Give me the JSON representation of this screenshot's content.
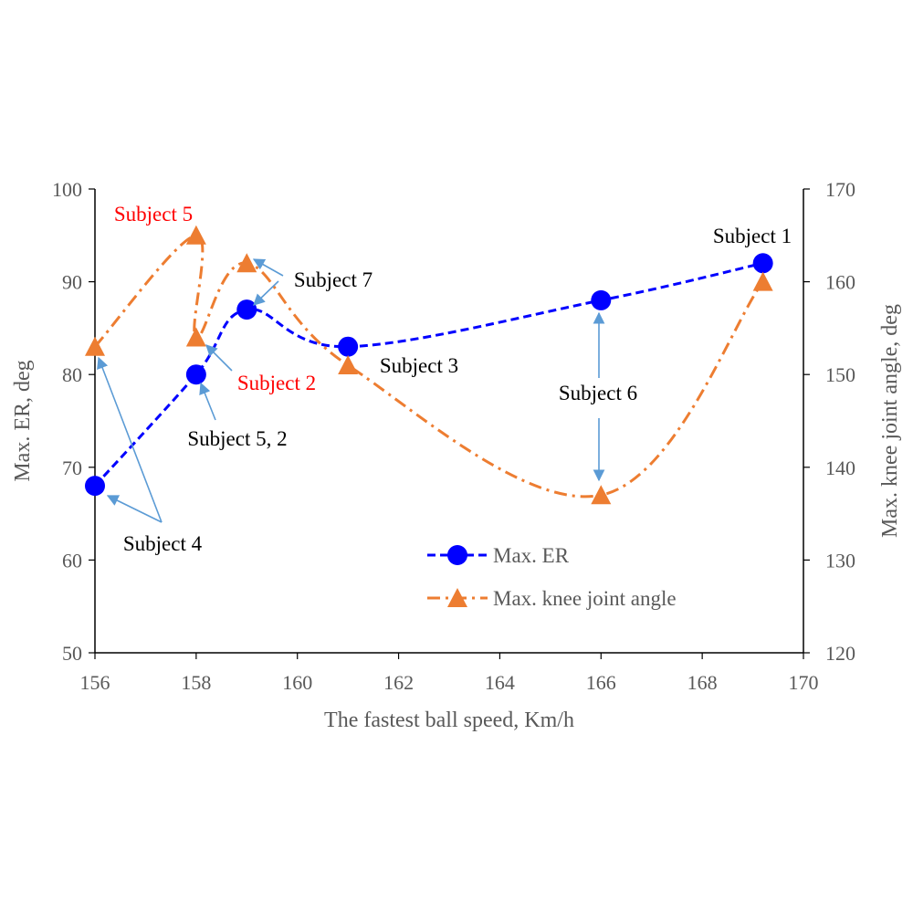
{
  "chart_data": {
    "type": "line",
    "title": "",
    "xlabel": "The fastest ball speed, Km/h",
    "ylabel": "Max.  ER, deg",
    "y2label": "Max. knee joint angle, deg",
    "xlim": [
      156,
      170
    ],
    "ylim": [
      50,
      100
    ],
    "y2lim": [
      120,
      170
    ],
    "x_ticks": [
      "156",
      "158",
      "160",
      "162",
      "164",
      "166",
      "168",
      "170"
    ],
    "y_ticks": [
      "50",
      "60",
      "70",
      "80",
      "90",
      "100"
    ],
    "y2_ticks": [
      "120",
      "130",
      "140",
      "150",
      "160",
      "170"
    ],
    "grid": false,
    "legend_position": "bottom-right",
    "series": [
      {
        "name": "Max. ER",
        "axis": "left",
        "color": "#0000FF",
        "marker": "circle",
        "line_style": "dashed",
        "points": [
          [
            156,
            68
          ],
          [
            158,
            80
          ],
          [
            159,
            87
          ],
          [
            161,
            83
          ],
          [
            166,
            88
          ],
          [
            169.2,
            92
          ]
        ]
      },
      {
        "name": "Max. knee joint angle",
        "axis": "right",
        "color": "#ED7D31",
        "marker": "triangle",
        "line_style": "dash-dot",
        "points": [
          [
            156,
            153
          ],
          [
            158,
            165
          ],
          [
            158,
            154
          ],
          [
            159,
            162
          ],
          [
            161,
            151
          ],
          [
            166,
            137
          ],
          [
            169.2,
            160
          ]
        ]
      }
    ],
    "annotations": [
      {
        "text": "Subject 5",
        "color": "#FF0000"
      },
      {
        "text": "Subject 7",
        "color": "#000000"
      },
      {
        "text": "Subject 2",
        "color": "#FF0000"
      },
      {
        "text": "Subject 3",
        "color": "#000000"
      },
      {
        "text": "Subject 5, 2",
        "color": "#000000"
      },
      {
        "text": "Subject 4",
        "color": "#000000"
      },
      {
        "text": "Subject 6",
        "color": "#000000"
      },
      {
        "text": "Subject 1",
        "color": "#000000"
      }
    ]
  }
}
